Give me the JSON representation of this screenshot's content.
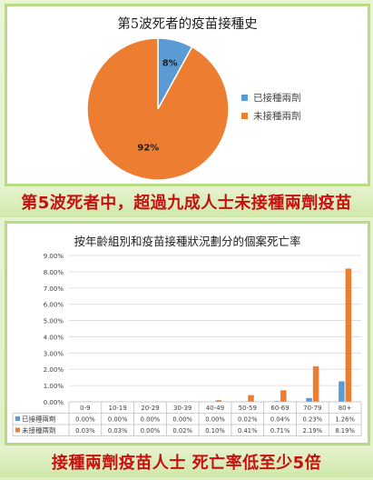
{
  "colors": {
    "vaccinated": "#5b9bd5",
    "unvaccinated": "#ed7d31",
    "banner_text": "#c8100f",
    "frame": "#b8dc82"
  },
  "banners": {
    "top": "第5波死者中，超過九成人士未接種兩劑疫苗",
    "bottom": "接種兩劑疫苗人士 死亡率低至少5倍"
  },
  "chart_data": [
    {
      "type": "pie",
      "title": "第5波死者的疫苗接種史",
      "labels": [
        "已接種兩劑",
        "未接種兩劑"
      ],
      "values": [
        8,
        92
      ],
      "data_labels": [
        "8%",
        "92%"
      ],
      "legend_position": "right"
    },
    {
      "type": "bar",
      "title": "按年齡組別和疫苗接種狀況劃分的個案死亡率",
      "categories": [
        "0-9",
        "10-19",
        "20-29",
        "30-39",
        "40-49",
        "50-59",
        "60-69",
        "70-79",
        "80+"
      ],
      "series": [
        {
          "name": "已接種兩劑",
          "values": [
            0.0,
            0.0,
            0.0,
            0.0,
            0.0,
            0.02,
            0.04,
            0.23,
            1.26
          ],
          "labels": [
            "0.00%",
            "0.00%",
            "0.00%",
            "0.00%",
            "0.00%",
            "0.02%",
            "0.04%",
            "0.23%",
            "1.26%"
          ]
        },
        {
          "name": "未接種兩劑",
          "values": [
            0.03,
            0.03,
            0.0,
            0.02,
            0.1,
            0.41,
            0.71,
            2.19,
            8.19
          ],
          "labels": [
            "0.03%",
            "0.03%",
            "0.00%",
            "0.02%",
            "0.10%",
            "0.41%",
            "0.71%",
            "2.19%",
            "8.19%"
          ]
        }
      ],
      "ylim": [
        0,
        9
      ],
      "yticks": [
        "0.00%",
        "1.00%",
        "2.00%",
        "3.00%",
        "4.00%",
        "5.00%",
        "6.00%",
        "7.00%",
        "8.00%",
        "9.00%"
      ],
      "grid": true,
      "legend_position": "bottom-table"
    }
  ]
}
